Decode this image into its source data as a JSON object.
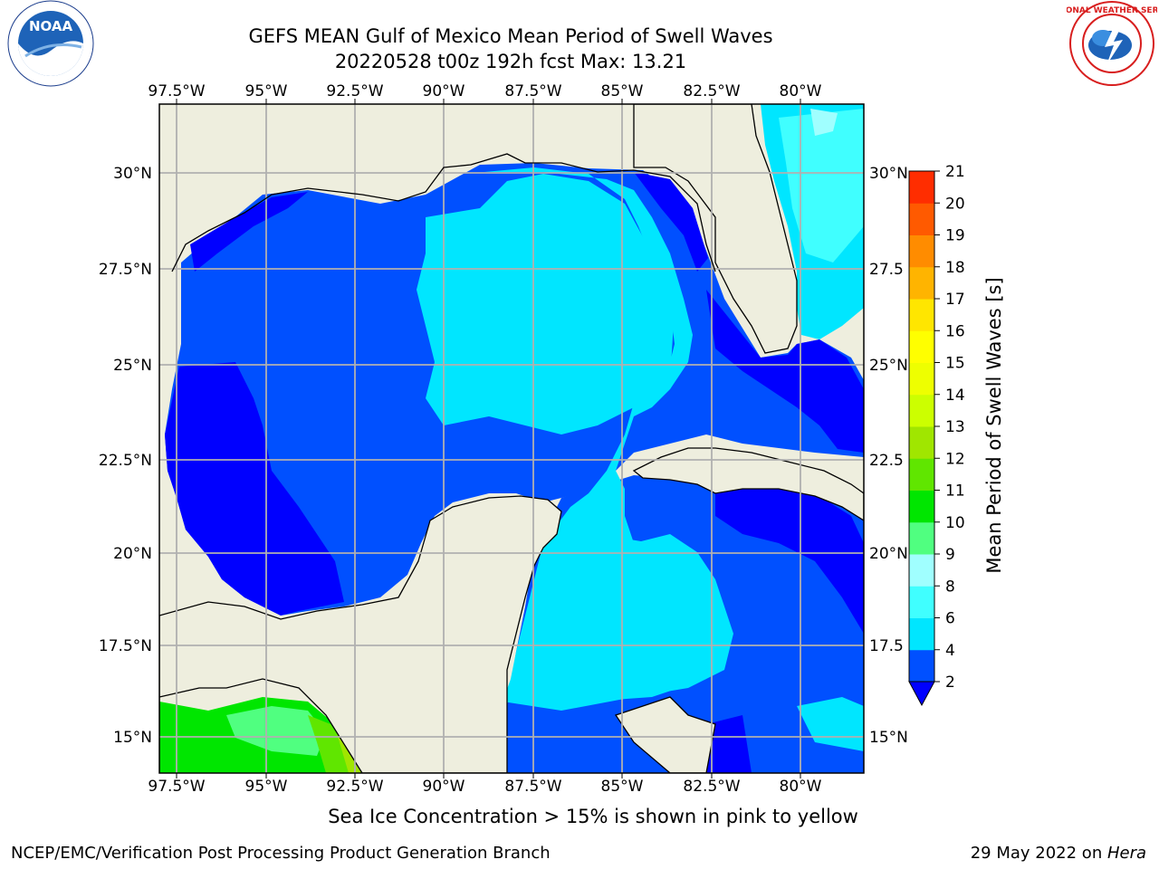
{
  "header": {
    "title_line1": "GEFS MEAN Gulf of Mexico Mean Period of Swell Waves",
    "title_line2": "20220528 t00z 192h fcst   Max: 13.21"
  },
  "logos": {
    "left": {
      "name": "noaa-logo",
      "text": "NOAA"
    },
    "right": {
      "name": "national-weather-service-logo",
      "text": "NATIONAL WEATHER SERVICE"
    }
  },
  "map": {
    "lon_labels": [
      "97.5°W",
      "95°W",
      "92.5°W",
      "90°W",
      "87.5°W",
      "85°W",
      "82.5°W",
      "80°W"
    ],
    "lat_labels_left": [
      "30°N",
      "27.5°N",
      "25°N",
      "22.5°N",
      "20°N",
      "17.5°N",
      "15°N"
    ],
    "lat_labels_right": [
      "30°N",
      "27.5",
      "25°N",
      "22.5",
      "20°N",
      "17.5",
      "15°N"
    ],
    "colors": {
      "land": "#eeeede",
      "grid": "#b0b0b0",
      "coast": "#000000"
    }
  },
  "colorbar": {
    "label": "Mean Period of Swell Waves [s]",
    "ticks": [
      "2",
      "4",
      "6",
      "8",
      "9",
      "10",
      "11",
      "12",
      "13",
      "14",
      "15",
      "16",
      "17",
      "18",
      "19",
      "20",
      "21"
    ],
    "colors": [
      "#0050ff",
      "#00e6ff",
      "#40ffff",
      "#a0ffff",
      "#50ff80",
      "#00e600",
      "#60e600",
      "#a0e600",
      "#ccff00",
      "#eeff00",
      "#ffff00",
      "#ffe600",
      "#ffb400",
      "#ff8c00",
      "#ff5a00",
      "#ff2d00"
    ],
    "underflow_color": "#0000ff"
  },
  "caption": "Sea Ice Concentration > 15% is shown in pink to yellow",
  "footer": {
    "left": "NCEP/EMC/Verification Post Processing Product Generation Branch",
    "date": "29 May 2022 on ",
    "host": "Hera"
  }
}
